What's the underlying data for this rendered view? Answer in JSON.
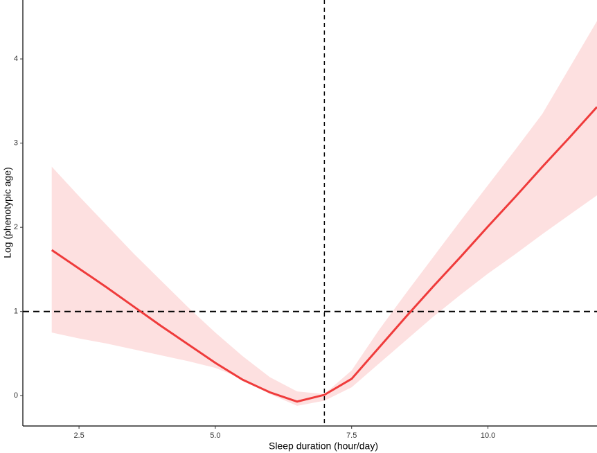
{
  "chart_data": {
    "type": "line",
    "xlabel": "Sleep duration (hour/day)",
    "ylabel": "Log (phenotypic age)",
    "x": [
      2,
      2.5,
      3,
      3.5,
      4,
      4.5,
      5,
      5.5,
      6,
      6.5,
      7,
      7.5,
      8,
      8.5,
      9,
      9.5,
      10,
      10.5,
      11,
      11.5,
      12
    ],
    "fit": {
      "color": "#ef3b3b",
      "values": [
        1.73,
        1.51,
        1.29,
        1.06,
        0.83,
        0.61,
        0.39,
        0.19,
        0.04,
        -0.07,
        0.01,
        0.2,
        0.57,
        0.94,
        1.3,
        1.65,
        2.01,
        2.36,
        2.72,
        3.07,
        3.43
      ]
    },
    "ci": {
      "color": "#fde0e0",
      "upper": [
        2.72,
        2.37,
        2.03,
        1.69,
        1.37,
        1.05,
        0.75,
        0.47,
        0.22,
        0.05,
        0.02,
        0.3,
        0.78,
        1.22,
        1.65,
        2.08,
        2.5,
        2.92,
        3.35,
        3.9,
        4.45
      ],
      "lower": [
        0.75,
        0.68,
        0.62,
        0.55,
        0.48,
        0.41,
        0.33,
        0.2,
        0.02,
        -0.12,
        -0.06,
        0.1,
        0.38,
        0.66,
        0.94,
        1.2,
        1.45,
        1.68,
        1.92,
        2.15,
        2.38
      ]
    },
    "reference_lines": {
      "x": 7,
      "y": 1
    },
    "xlim": [
      1.47,
      12
    ],
    "ylim": [
      -0.36,
      4.7
    ],
    "xticks": [
      2.5,
      {
        "value": 5,
        "label": "5.0"
      },
      7.5,
      {
        "value": 10,
        "label": "10.0"
      }
    ],
    "yticks": [
      0,
      1,
      2,
      3,
      4
    ],
    "grid": false
  }
}
